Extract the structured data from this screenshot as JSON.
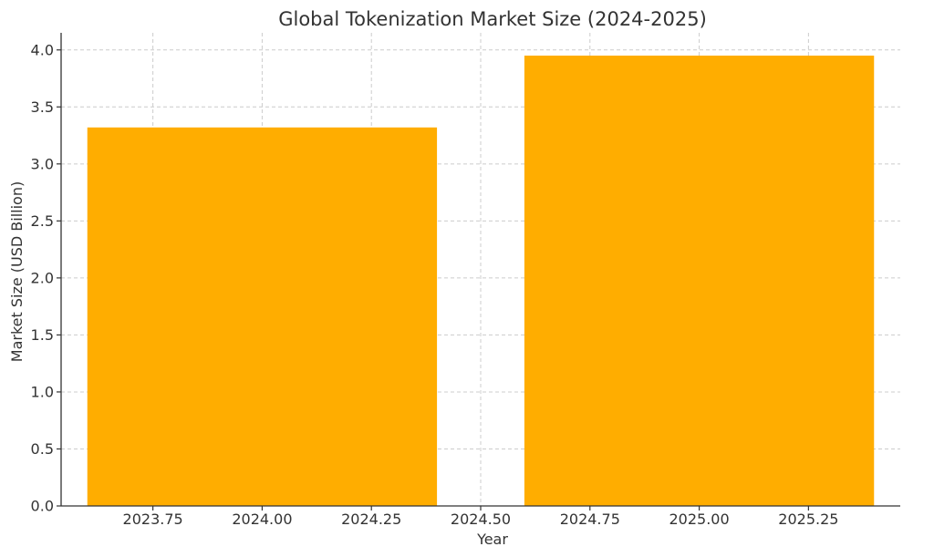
{
  "chart_data": {
    "type": "bar",
    "title": "Global Tokenization Market Size (2024-2025)",
    "xlabel": "Year",
    "ylabel": "Market Size (USD Billion)",
    "x": [
      2024,
      2025
    ],
    "values": [
      3.32,
      3.95
    ],
    "bar_width_years": 0.8,
    "xlim": [
      2023.54,
      2025.46
    ],
    "ylim": [
      0,
      4.15
    ],
    "x_ticks": [
      2023.75,
      2024.0,
      2024.25,
      2024.5,
      2024.75,
      2025.0,
      2025.25
    ],
    "x_tick_labels": [
      "2023.75",
      "2024.00",
      "2024.25",
      "2024.50",
      "2024.75",
      "2025.00",
      "2025.25"
    ],
    "y_ticks": [
      0.0,
      0.5,
      1.0,
      1.5,
      2.0,
      2.5,
      3.0,
      3.5,
      4.0
    ],
    "y_tick_labels": [
      "0.0",
      "0.5",
      "1.0",
      "1.5",
      "2.0",
      "2.5",
      "3.0",
      "3.5",
      "4.0"
    ],
    "grid": true,
    "bar_color": "#FFAD00"
  }
}
